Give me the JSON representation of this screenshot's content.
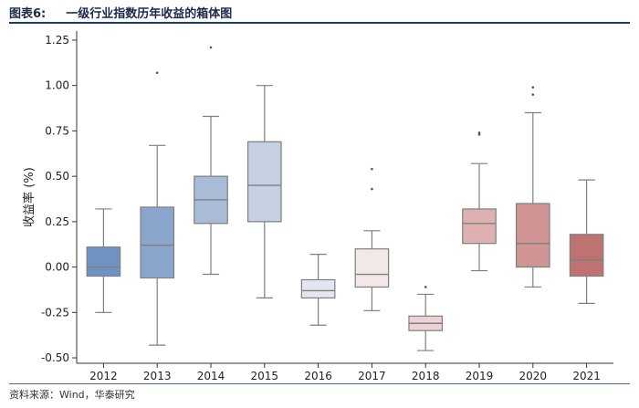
{
  "figure": {
    "number": "图表6:",
    "title": "一级行业指数历年收益的箱体图",
    "source": "资料来源：Wind，华泰研究"
  },
  "chart_data": {
    "type": "box",
    "ylabel": "收益率 (%)",
    "ylim": [
      -0.53,
      1.3
    ],
    "yticks": [
      "-0.50",
      "-0.25",
      "0.00",
      "0.25",
      "0.50",
      "0.75",
      "1.00",
      "1.25"
    ],
    "categories": [
      "2012",
      "2013",
      "2014",
      "2015",
      "2016",
      "2017",
      "2018",
      "2019",
      "2020",
      "2021"
    ],
    "boxes": [
      {
        "year": "2012",
        "whisker_low": -0.25,
        "q1": -0.05,
        "median": 0.0,
        "q3": 0.11,
        "whisker_high": 0.32,
        "outliers": [],
        "color": "#6f92c4"
      },
      {
        "year": "2013",
        "whisker_low": -0.43,
        "q1": -0.06,
        "median": 0.12,
        "q3": 0.33,
        "whisker_high": 0.67,
        "outliers": [
          1.07
        ],
        "color": "#8aa6cc"
      },
      {
        "year": "2014",
        "whisker_low": -0.04,
        "q1": 0.24,
        "median": 0.37,
        "q3": 0.5,
        "whisker_high": 0.83,
        "outliers": [
          1.21
        ],
        "color": "#a9bbd6"
      },
      {
        "year": "2015",
        "whisker_low": -0.17,
        "q1": 0.25,
        "median": 0.45,
        "q3": 0.69,
        "whisker_high": 1.0,
        "outliers": [],
        "color": "#c5d0e2"
      },
      {
        "year": "2016",
        "whisker_low": -0.32,
        "q1": -0.17,
        "median": -0.13,
        "q3": -0.07,
        "whisker_high": 0.07,
        "outliers": [],
        "color": "#e3e6ee"
      },
      {
        "year": "2017",
        "whisker_low": -0.24,
        "q1": -0.11,
        "median": -0.04,
        "q3": 0.1,
        "whisker_high": 0.2,
        "outliers": [
          0.43,
          0.54
        ],
        "color": "#f3e8e8"
      },
      {
        "year": "2018",
        "whisker_low": -0.46,
        "q1": -0.35,
        "median": -0.31,
        "q3": -0.27,
        "whisker_high": -0.15,
        "outliers": [
          -0.11
        ],
        "color": "#ecd2d2"
      },
      {
        "year": "2019",
        "whisker_low": -0.02,
        "q1": 0.13,
        "median": 0.24,
        "q3": 0.32,
        "whisker_high": 0.57,
        "outliers": [
          0.73,
          0.74
        ],
        "color": "#deb0b0"
      },
      {
        "year": "2020",
        "whisker_low": -0.11,
        "q1": 0.0,
        "median": 0.13,
        "q3": 0.35,
        "whisker_high": 0.85,
        "outliers": [
          0.95,
          0.99
        ],
        "color": "#d09494"
      },
      {
        "year": "2021",
        "whisker_low": -0.2,
        "q1": -0.05,
        "median": 0.04,
        "q3": 0.18,
        "whisker_high": 0.48,
        "outliers": [],
        "color": "#bf7272"
      }
    ],
    "grid": false,
    "legend": "none"
  }
}
